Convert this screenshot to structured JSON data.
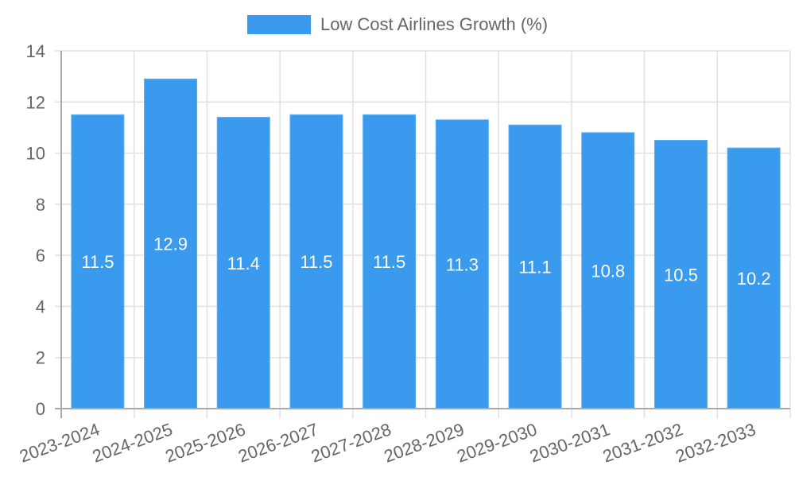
{
  "legend": {
    "label": "Low Cost Airlines Growth (%)",
    "color": "#3a9bee"
  },
  "colors": {
    "bar": "#3a9bee",
    "bar_border": "#5aaef2",
    "grid": "#e0e0e0",
    "axis": "#aaaaaa",
    "text": "#666666",
    "bar_label": "#ffffff"
  },
  "chart_data": {
    "type": "bar",
    "title": "",
    "xlabel": "",
    "ylabel": "",
    "categories": [
      "2023-2024",
      "2024-2025",
      "2025-2026",
      "2026-2027",
      "2027-2028",
      "2028-2029",
      "2029-2030",
      "2030-2031",
      "2031-2032",
      "2032-2033"
    ],
    "series": [
      {
        "name": "Low Cost Airlines Growth (%)",
        "values": [
          11.5,
          12.9,
          11.4,
          11.5,
          11.5,
          11.3,
          11.1,
          10.8,
          10.5,
          10.2
        ]
      }
    ],
    "ylim": [
      0,
      14
    ],
    "yticks": [
      0,
      2,
      4,
      6,
      8,
      10,
      12,
      14
    ],
    "grid": true,
    "legend_position": "top",
    "data_labels": true
  }
}
